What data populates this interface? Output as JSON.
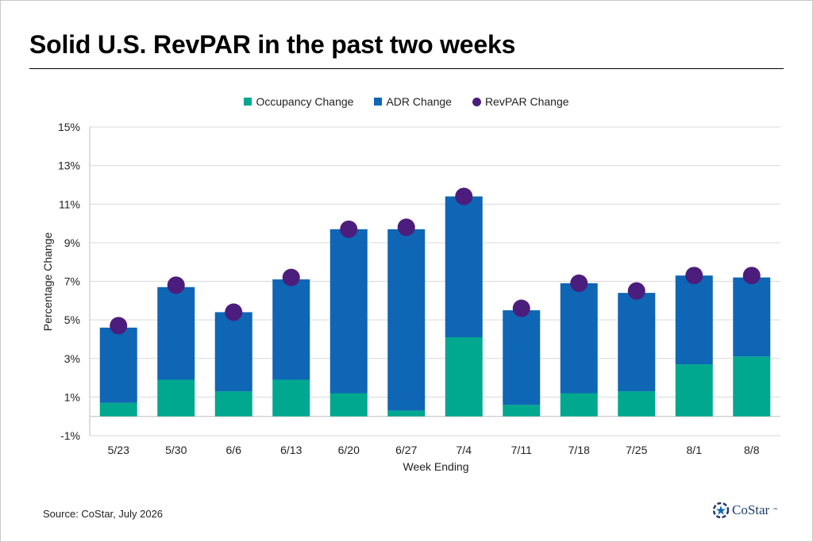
{
  "title": "Solid U.S. RevPAR in the past two weeks",
  "source": "Source: CoStar, July 2026",
  "logo": {
    "text": "CoStar",
    "tm": "™",
    "icon": "costar-star-logo-icon"
  },
  "colors": {
    "occupancy": "#00a88f",
    "adr": "#0f66b5",
    "revpar": "#4b1d7c",
    "grid": "#d9d9d9",
    "axis": "#bfbfbf"
  },
  "chart_data": {
    "type": "bar",
    "stacked": true,
    "xlabel": "Week Ending",
    "ylabel": "Percentage Change",
    "ylim": [
      -1,
      15
    ],
    "yticks": [
      -1,
      1,
      3,
      5,
      7,
      9,
      11,
      13,
      15
    ],
    "ytick_labels": [
      "-1%",
      "1%",
      "3%",
      "5%",
      "7%",
      "9%",
      "11%",
      "13%",
      "15%"
    ],
    "grid": true,
    "legend_position": "top-center",
    "categories": [
      "5/23",
      "5/30",
      "6/6",
      "6/13",
      "6/20",
      "6/27",
      "7/4",
      "7/11",
      "7/18",
      "7/25",
      "8/1",
      "8/8"
    ],
    "series": [
      {
        "name": "Occupancy Change",
        "kind": "bar",
        "color": "#00a88f",
        "values": [
          0.7,
          1.9,
          1.3,
          1.9,
          1.2,
          0.3,
          4.1,
          0.6,
          1.2,
          1.3,
          2.7,
          3.1
        ]
      },
      {
        "name": "ADR Change",
        "kind": "bar",
        "color": "#0f66b5",
        "values": [
          3.9,
          4.8,
          4.1,
          5.2,
          8.5,
          9.4,
          7.3,
          4.9,
          5.7,
          5.1,
          4.6,
          4.1
        ]
      },
      {
        "name": "RevPAR Change",
        "kind": "dot",
        "color": "#4b1d7c",
        "values": [
          4.7,
          6.8,
          5.4,
          7.2,
          9.7,
          9.8,
          11.4,
          5.6,
          6.9,
          6.5,
          7.3,
          7.3
        ]
      }
    ]
  }
}
